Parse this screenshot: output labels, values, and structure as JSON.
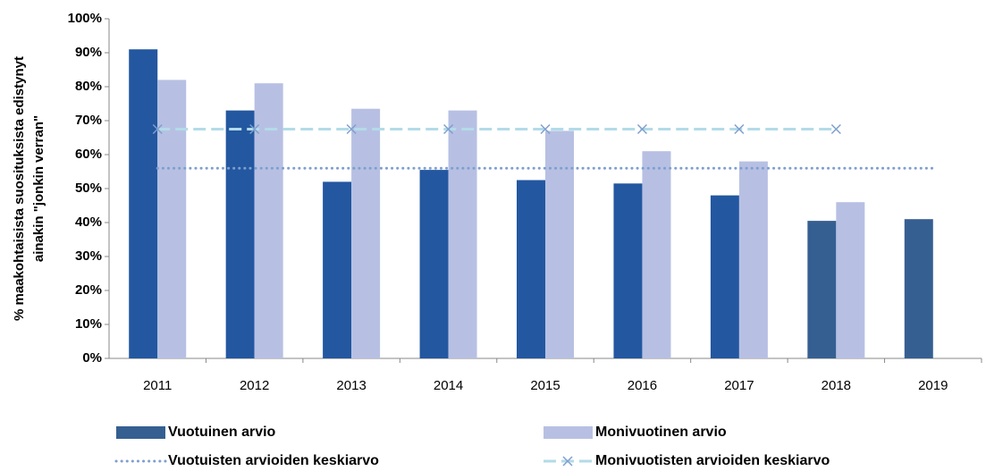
{
  "chart_data": {
    "type": "bar",
    "ylabel": [
      "% maakohtaisista suosituksista edistynyt",
      "ainakin \"jonkin verran\""
    ],
    "categories": [
      "2011",
      "2012",
      "2013",
      "2014",
      "2015",
      "2016",
      "2017",
      "2018",
      "2019"
    ],
    "ylim": [
      0,
      100
    ],
    "yticks": [
      {
        "value": 0,
        "label": "0%"
      },
      {
        "value": 10,
        "label": "10%"
      },
      {
        "value": 20,
        "label": "20%"
      },
      {
        "value": 30,
        "label": "30%"
      },
      {
        "value": 40,
        "label": "40%"
      },
      {
        "value": 50,
        "label": "50%"
      },
      {
        "value": 60,
        "label": "60%"
      },
      {
        "value": 70,
        "label": "70%"
      },
      {
        "value": 80,
        "label": "80%"
      },
      {
        "value": 90,
        "label": "90%"
      },
      {
        "value": 100,
        "label": "100%"
      }
    ],
    "series": [
      {
        "name": "Vuotuinen arvio",
        "kind": "bar",
        "color": "#365f91",
        "colors": [
          "#2357a0",
          "#2357a0",
          "#2357a0",
          "#2357a0",
          "#2357a0",
          "#2357a0",
          "#2357a0",
          "#365f91",
          "#365f91"
        ],
        "values": [
          91,
          73,
          52,
          55.5,
          52.5,
          51.5,
          48,
          40.5,
          41
        ]
      },
      {
        "name": "Monivuotinen arvio",
        "kind": "bar",
        "color": "#b7c0e3",
        "values": [
          82,
          81,
          73.5,
          73,
          67,
          61,
          58,
          46,
          null
        ]
      },
      {
        "name": "Vuotuisten arvioiden keskiarvo",
        "kind": "line",
        "style": "dotted",
        "color": "#7e9fcf",
        "values": [
          56,
          56,
          56,
          56,
          56,
          56,
          56,
          56,
          56
        ]
      },
      {
        "name": "Monivuotisten arvioiden keskiarvo",
        "kind": "line",
        "style": "dashed",
        "marker": "x",
        "color": "#b3dbe8",
        "marker_color": "#7e9fcf",
        "values": [
          67.5,
          67.5,
          67.5,
          67.5,
          67.5,
          67.5,
          67.5,
          67.5,
          null
        ]
      }
    ]
  }
}
